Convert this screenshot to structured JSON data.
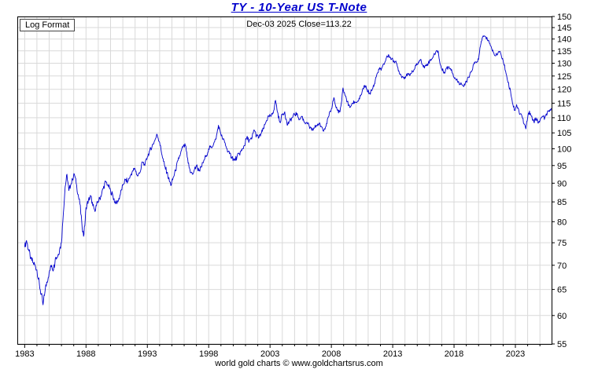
{
  "header": {
    "title": "TY  -  10-Year US T-Note",
    "subtitle": "Dec-03 2025  Close=113.22"
  },
  "labels": {
    "log_format": "Log Format",
    "footer": "world gold charts © www.goldchartsrus.com"
  },
  "colors": {
    "line": "#0000cc",
    "title": "#0000cc",
    "grid": "#d9d9d9",
    "frame": "#000000",
    "tick": "#000000"
  },
  "chart_data": {
    "type": "line",
    "title": "TY - 10-Year US T-Note",
    "subtitle": "Dec-03 2025 Close=113.22",
    "scale": "log",
    "grid": true,
    "y_axis_side": "right",
    "xlabel": "",
    "ylabel": "",
    "xlim": [
      1982.4,
      2025.95
    ],
    "ylim": [
      55,
      150
    ],
    "y_ticks": [
      55,
      60,
      65,
      70,
      75,
      80,
      85,
      90,
      95,
      100,
      105,
      110,
      115,
      120,
      125,
      130,
      135,
      140,
      145,
      150
    ],
    "x_ticks": [
      {
        "year": 1983,
        "label": "1983"
      },
      {
        "year": 1988,
        "label": "1988"
      },
      {
        "year": 1993,
        "label": "1993"
      },
      {
        "year": 1998,
        "label": "1998"
      },
      {
        "year": 2003,
        "label": "2003"
      },
      {
        "year": 2008,
        "label": "2008"
      },
      {
        "year": 2013,
        "label": "2013"
      },
      {
        "year": 2018,
        "label": "2018"
      },
      {
        "year": 2023,
        "label": "2023"
      }
    ],
    "series": [
      {
        "name": "TY 10-Year US T-Note price",
        "color": "#0000cc",
        "points": [
          [
            1983.0,
            74
          ],
          [
            1983.15,
            75.5
          ],
          [
            1983.3,
            73.5
          ],
          [
            1983.5,
            71.5
          ],
          [
            1983.7,
            70.5
          ],
          [
            1983.85,
            70
          ],
          [
            1984.0,
            69
          ],
          [
            1984.2,
            66
          ],
          [
            1984.35,
            64
          ],
          [
            1984.5,
            62
          ],
          [
            1984.65,
            64.5
          ],
          [
            1984.8,
            66.5
          ],
          [
            1985.0,
            68.5
          ],
          [
            1985.2,
            70
          ],
          [
            1985.35,
            69
          ],
          [
            1985.5,
            71.5
          ],
          [
            1985.7,
            72
          ],
          [
            1985.85,
            73.5
          ],
          [
            1986.0,
            75
          ],
          [
            1986.15,
            82
          ],
          [
            1986.3,
            89
          ],
          [
            1986.45,
            92.5
          ],
          [
            1986.6,
            88
          ],
          [
            1986.75,
            89.5
          ],
          [
            1986.9,
            91
          ],
          [
            1987.05,
            92.5
          ],
          [
            1987.2,
            90
          ],
          [
            1987.35,
            87
          ],
          [
            1987.5,
            84.5
          ],
          [
            1987.65,
            80
          ],
          [
            1987.8,
            76.5
          ],
          [
            1987.9,
            79
          ],
          [
            1988.0,
            83.5
          ],
          [
            1988.2,
            85.5
          ],
          [
            1988.4,
            86.5
          ],
          [
            1988.55,
            84
          ],
          [
            1988.7,
            83
          ],
          [
            1988.85,
            84
          ],
          [
            1989.0,
            85
          ],
          [
            1989.2,
            86.5
          ],
          [
            1989.4,
            88.5
          ],
          [
            1989.6,
            90.5
          ],
          [
            1989.8,
            89.5
          ],
          [
            1990.0,
            88
          ],
          [
            1990.2,
            86.5
          ],
          [
            1990.4,
            84.5
          ],
          [
            1990.6,
            85
          ],
          [
            1990.8,
            87
          ],
          [
            1991.0,
            89.5
          ],
          [
            1991.2,
            91
          ],
          [
            1991.4,
            90.5
          ],
          [
            1991.6,
            92
          ],
          [
            1991.8,
            93.5
          ],
          [
            1992.0,
            94
          ],
          [
            1992.2,
            92
          ],
          [
            1992.4,
            93
          ],
          [
            1992.6,
            96
          ],
          [
            1992.8,
            95
          ],
          [
            1993.0,
            97.5
          ],
          [
            1993.2,
            99.5
          ],
          [
            1993.4,
            101
          ],
          [
            1993.6,
            102.5
          ],
          [
            1993.8,
            104.5
          ],
          [
            1994.0,
            102
          ],
          [
            1994.2,
            98
          ],
          [
            1994.4,
            95
          ],
          [
            1994.6,
            93
          ],
          [
            1994.8,
            90.5
          ],
          [
            1994.95,
            89.5
          ],
          [
            1995.1,
            91.5
          ],
          [
            1995.3,
            93.5
          ],
          [
            1995.5,
            96.5
          ],
          [
            1995.7,
            98.5
          ],
          [
            1995.9,
            100.5
          ],
          [
            1996.1,
            101
          ],
          [
            1996.25,
            97.5
          ],
          [
            1996.4,
            94.5
          ],
          [
            1996.55,
            93
          ],
          [
            1996.7,
            92.5
          ],
          [
            1996.85,
            94
          ],
          [
            1997.0,
            95
          ],
          [
            1997.2,
            93.5
          ],
          [
            1997.4,
            94.5
          ],
          [
            1997.6,
            96.5
          ],
          [
            1997.8,
            98
          ],
          [
            1998.0,
            100
          ],
          [
            1998.2,
            100.5
          ],
          [
            1998.4,
            101.5
          ],
          [
            1998.6,
            103
          ],
          [
            1998.8,
            107.5
          ],
          [
            1998.9,
            106
          ],
          [
            1999.1,
            103.5
          ],
          [
            1999.3,
            102
          ],
          [
            1999.5,
            100
          ],
          [
            1999.7,
            98.5
          ],
          [
            1999.9,
            97.5
          ],
          [
            2000.1,
            96.5
          ],
          [
            2000.3,
            97.5
          ],
          [
            2000.5,
            98.5
          ],
          [
            2000.7,
            99.5
          ],
          [
            2000.9,
            101
          ],
          [
            2001.1,
            103.5
          ],
          [
            2001.3,
            102.5
          ],
          [
            2001.5,
            103
          ],
          [
            2001.7,
            106
          ],
          [
            2001.9,
            104
          ],
          [
            2002.1,
            103.5
          ],
          [
            2002.3,
            105
          ],
          [
            2002.5,
            106.5
          ],
          [
            2002.7,
            109
          ],
          [
            2002.9,
            110.5
          ],
          [
            2003.1,
            110.5
          ],
          [
            2003.3,
            112.5
          ],
          [
            2003.45,
            116
          ],
          [
            2003.6,
            112
          ],
          [
            2003.8,
            108.5
          ],
          [
            2004.0,
            111
          ],
          [
            2004.2,
            112
          ],
          [
            2004.4,
            107.5
          ],
          [
            2004.6,
            109
          ],
          [
            2004.8,
            110
          ],
          [
            2005.0,
            111
          ],
          [
            2005.2,
            111.5
          ],
          [
            2005.4,
            109.5
          ],
          [
            2005.6,
            110.5
          ],
          [
            2005.8,
            108.5
          ],
          [
            2006.0,
            108.5
          ],
          [
            2006.2,
            107
          ],
          [
            2006.4,
            105.8
          ],
          [
            2006.6,
            106.5
          ],
          [
            2006.8,
            107.5
          ],
          [
            2007.0,
            108
          ],
          [
            2007.2,
            107
          ],
          [
            2007.4,
            106
          ],
          [
            2007.6,
            108
          ],
          [
            2007.8,
            110.5
          ],
          [
            2008.0,
            113
          ],
          [
            2008.2,
            117
          ],
          [
            2008.35,
            114
          ],
          [
            2008.5,
            112.5
          ],
          [
            2008.7,
            112
          ],
          [
            2008.85,
            116
          ],
          [
            2008.95,
            120.5
          ],
          [
            2009.1,
            118
          ],
          [
            2009.3,
            115.5
          ],
          [
            2009.5,
            113.5
          ],
          [
            2009.7,
            115
          ],
          [
            2009.9,
            115.5
          ],
          [
            2010.1,
            115.5
          ],
          [
            2010.3,
            116.5
          ],
          [
            2010.5,
            119
          ],
          [
            2010.7,
            121.5
          ],
          [
            2010.9,
            120
          ],
          [
            2011.1,
            118.5
          ],
          [
            2011.3,
            119.5
          ],
          [
            2011.5,
            122
          ],
          [
            2011.7,
            125.5
          ],
          [
            2011.9,
            127.5
          ],
          [
            2012.1,
            128
          ],
          [
            2012.3,
            129.5
          ],
          [
            2012.5,
            132.5
          ],
          [
            2012.7,
            133
          ],
          [
            2012.9,
            131.5
          ],
          [
            2013.1,
            131
          ],
          [
            2013.3,
            130
          ],
          [
            2013.5,
            127
          ],
          [
            2013.7,
            125
          ],
          [
            2013.9,
            124.5
          ],
          [
            2014.1,
            125
          ],
          [
            2014.3,
            125.5
          ],
          [
            2014.5,
            126
          ],
          [
            2014.7,
            127
          ],
          [
            2014.9,
            129
          ],
          [
            2015.1,
            130.5
          ],
          [
            2015.3,
            131.5
          ],
          [
            2015.5,
            128.5
          ],
          [
            2015.7,
            129
          ],
          [
            2015.9,
            130
          ],
          [
            2016.1,
            131.5
          ],
          [
            2016.3,
            132.5
          ],
          [
            2016.5,
            134.5
          ],
          [
            2016.7,
            135
          ],
          [
            2016.85,
            130
          ],
          [
            2017.0,
            127.5
          ],
          [
            2017.2,
            126.5
          ],
          [
            2017.4,
            128
          ],
          [
            2017.6,
            128.5
          ],
          [
            2017.8,
            127.5
          ],
          [
            2018.0,
            124.5
          ],
          [
            2018.2,
            123.5
          ],
          [
            2018.4,
            122.5
          ],
          [
            2018.6,
            122
          ],
          [
            2018.8,
            121
          ],
          [
            2019.0,
            123
          ],
          [
            2019.2,
            124.5
          ],
          [
            2019.4,
            126.5
          ],
          [
            2019.6,
            129.5
          ],
          [
            2019.8,
            130.5
          ],
          [
            2020.0,
            131.5
          ],
          [
            2020.15,
            137
          ],
          [
            2020.3,
            140.5
          ],
          [
            2020.45,
            141.3
          ],
          [
            2020.6,
            140.5
          ],
          [
            2020.8,
            139.5
          ],
          [
            2021.0,
            137
          ],
          [
            2021.2,
            134.5
          ],
          [
            2021.4,
            133
          ],
          [
            2021.6,
            134.5
          ],
          [
            2021.8,
            134
          ],
          [
            2022.0,
            131
          ],
          [
            2022.2,
            127
          ],
          [
            2022.4,
            122.5
          ],
          [
            2022.6,
            119.5
          ],
          [
            2022.8,
            114.5
          ],
          [
            2022.95,
            112.5
          ],
          [
            2023.1,
            114.5
          ],
          [
            2023.3,
            112
          ],
          [
            2023.5,
            111
          ],
          [
            2023.7,
            108
          ],
          [
            2023.85,
            106.3
          ],
          [
            2024.0,
            110
          ],
          [
            2024.15,
            112.3
          ],
          [
            2024.3,
            110.5
          ],
          [
            2024.5,
            108.7
          ],
          [
            2024.7,
            109.5
          ],
          [
            2024.9,
            108.5
          ],
          [
            2025.0,
            109
          ],
          [
            2025.2,
            110.5
          ],
          [
            2025.4,
            110
          ],
          [
            2025.6,
            111.5
          ],
          [
            2025.75,
            112.5
          ],
          [
            2025.92,
            113.22
          ]
        ]
      }
    ]
  }
}
